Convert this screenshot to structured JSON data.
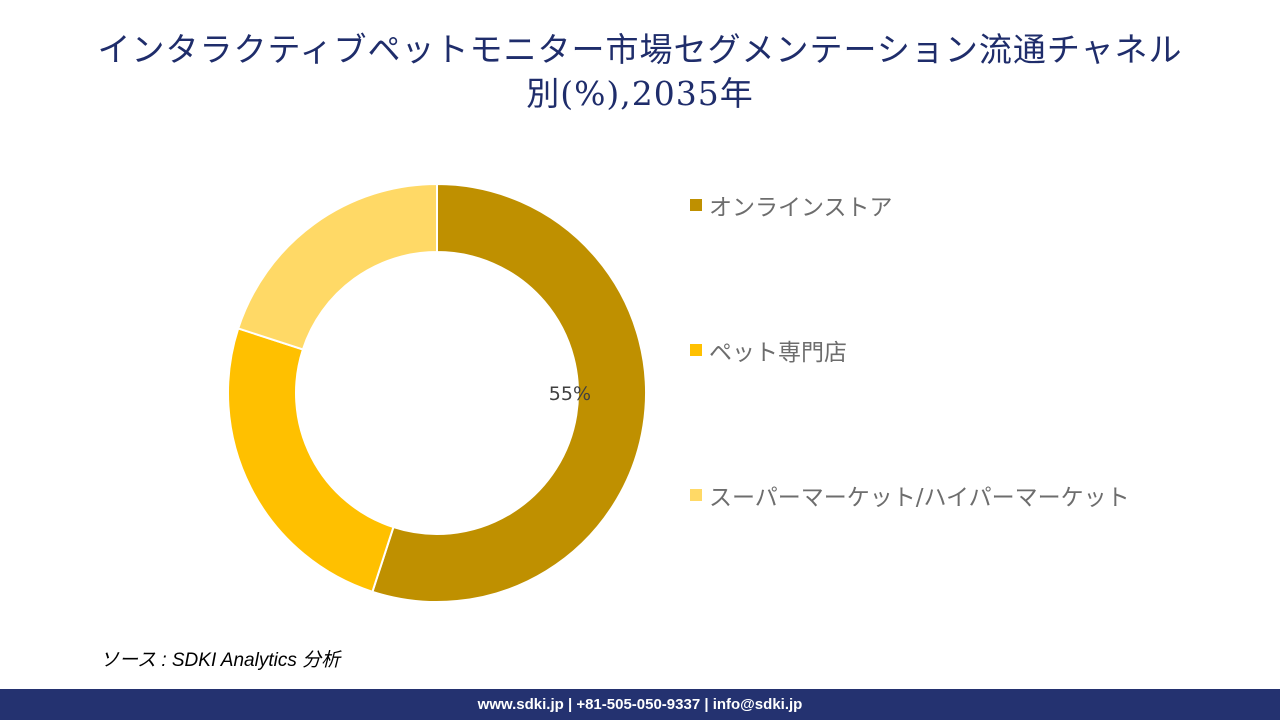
{
  "title": {
    "line1": "インタラクティブペットモニター市場セグメンテーション流通チャネル",
    "line2": "別(%),2035年"
  },
  "chart_data": {
    "type": "pie",
    "title": "インタラクティブペットモニター市場セグメンテーション流通チャネル別(%),2035年",
    "categories": [
      "オンラインストア",
      "ペット専門店",
      "スーパーマーケット/ハイパーマーケット"
    ],
    "values": [
      55,
      25,
      20
    ],
    "data_labels": [
      "55%",
      "",
      ""
    ],
    "colors": [
      "#bf9000",
      "#ffc000",
      "#ffd966"
    ],
    "donut": true,
    "legend_position": "right"
  },
  "legend": {
    "items": [
      {
        "label": "オンラインストア",
        "color": "#bf9000"
      },
      {
        "label": "ペット専門店",
        "color": "#ffc000"
      },
      {
        "label": "スーパーマーケット/ハイパーマーケット",
        "color": "#ffd966"
      }
    ]
  },
  "source": "ソース : SDKI Analytics 分析",
  "footer": "www.sdki.jp | +81-505-050-9337 | info@sdki.jp"
}
